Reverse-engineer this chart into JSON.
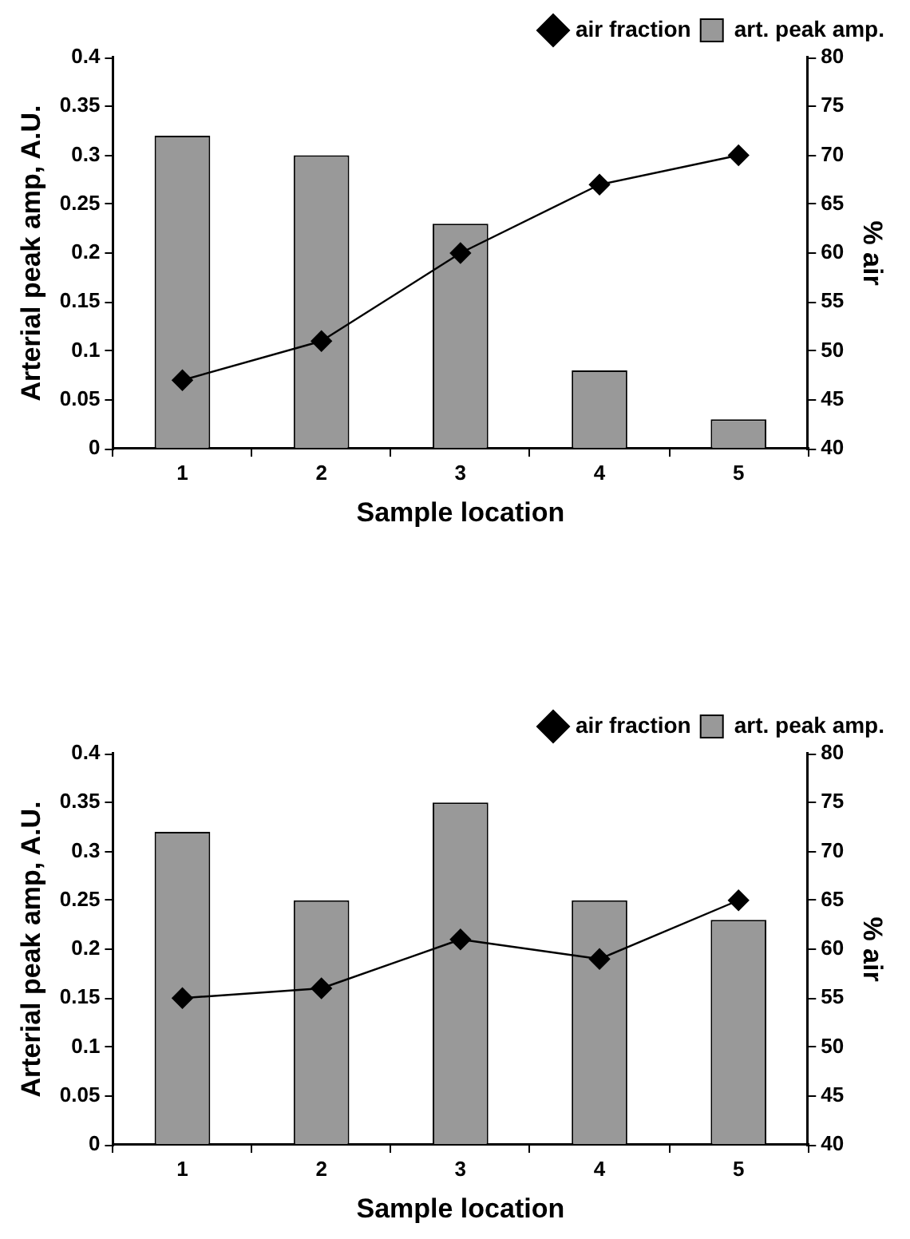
{
  "chart_data": [
    {
      "type": "bar",
      "xlabel": "Sample location",
      "ylabel": "Arterial peak amp, A.U.",
      "y2label": "% air",
      "categories": [
        "1",
        "2",
        "3",
        "4",
        "5"
      ],
      "series": [
        {
          "name": "art. peak amp.",
          "color": "#999999",
          "values": [
            0.32,
            0.3,
            0.23,
            0.08,
            0.03
          ]
        },
        {
          "name": "air fraction",
          "type": "line",
          "axis": "y2",
          "color": "#000000",
          "values": [
            47,
            51,
            60,
            67,
            70
          ]
        }
      ],
      "ylim": [
        0,
        0.4
      ],
      "yticks": [
        0,
        0.05,
        0.1,
        0.15,
        0.2,
        0.25,
        0.3,
        0.35,
        0.4
      ],
      "y2lim": [
        40,
        80
      ],
      "y2ticks": [
        40,
        45,
        50,
        55,
        60,
        65,
        70,
        75,
        80
      ],
      "grid": false,
      "legend": "top right",
      "marker": "diamond",
      "line_style": "solid"
    },
    {
      "type": "bar",
      "xlabel": "Sample location",
      "ylabel": "Arterial peak amp, A.U.",
      "y2label": "% air",
      "categories": [
        "1",
        "2",
        "3",
        "4",
        "5"
      ],
      "series": [
        {
          "name": "art. peak amp.",
          "color": "#999999",
          "values": [
            0.32,
            0.25,
            0.35,
            0.25,
            0.23
          ]
        },
        {
          "name": "air fraction",
          "type": "line",
          "axis": "y2",
          "color": "#000000",
          "values": [
            55,
            56,
            61,
            59,
            65
          ]
        }
      ],
      "ylim": [
        0,
        0.4
      ],
      "yticks": [
        0,
        0.05,
        0.1,
        0.15,
        0.2,
        0.25,
        0.3,
        0.35,
        0.4
      ],
      "y2lim": [
        40,
        80
      ],
      "y2ticks": [
        40,
        45,
        50,
        55,
        60,
        65,
        70,
        75,
        80
      ],
      "grid": false,
      "legend": "top right",
      "marker": "diamond",
      "line_style": "solid"
    }
  ]
}
